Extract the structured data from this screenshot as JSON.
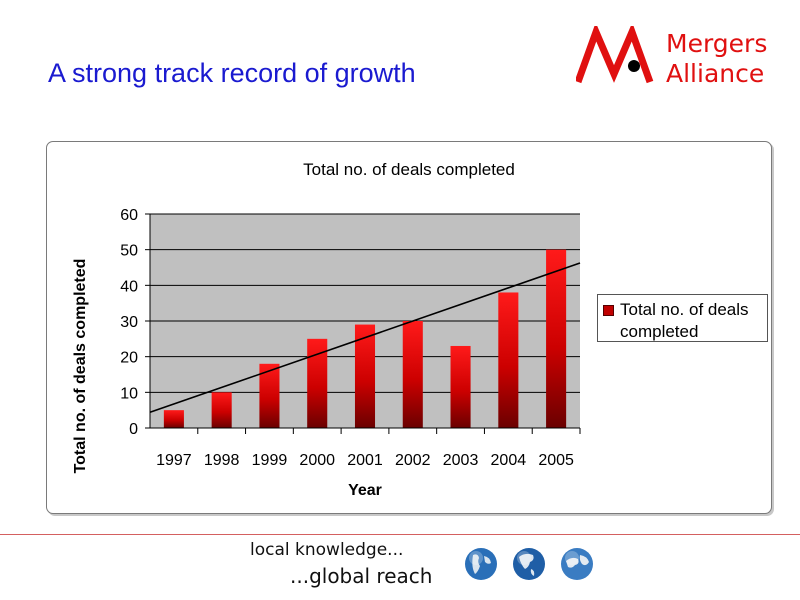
{
  "slide": {
    "title": "A strong track record of growth",
    "logo_line1": "Mergers",
    "logo_line2": "Alliance",
    "tagline_1": "local knowledge...",
    "tagline_2": "...global reach"
  },
  "colors": {
    "title": "#1a1ad0",
    "bar_top": "#ff1a1a",
    "bar_bottom": "#6a0000",
    "plot_bg": "#c0c0c0",
    "logo_red": "#e01010"
  },
  "icons": [
    "globe-icon-americas",
    "globe-icon-north-america",
    "globe-icon-world"
  ],
  "chart_data": {
    "type": "bar",
    "title": "Total no. of deals completed",
    "xlabel": "Year",
    "ylabel": "Total no. of deals completed",
    "categories": [
      "1997",
      "1998",
      "1999",
      "2000",
      "2001",
      "2002",
      "2003",
      "2004",
      "2005"
    ],
    "series": [
      {
        "name": "Total no. of deals completed",
        "values": [
          5,
          10,
          18,
          25,
          29,
          30,
          23,
          38,
          50
        ]
      }
    ],
    "ylim": [
      0,
      60
    ],
    "yticks": [
      "0",
      "10",
      "20",
      "30",
      "40",
      "50",
      "60"
    ],
    "trendline": "linear",
    "grid": "horizontal",
    "legend": "right"
  }
}
